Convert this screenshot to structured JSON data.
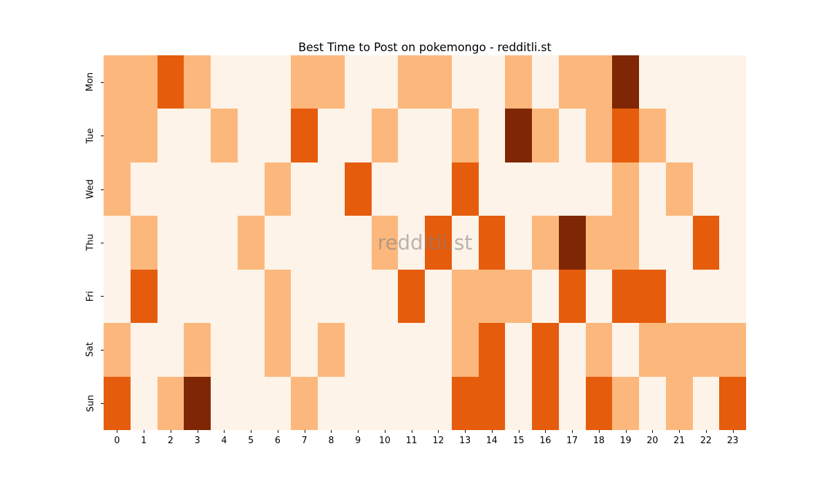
{
  "title": "Best Time to Post on pokemongo - redditli.st",
  "watermark": "redditli.st",
  "chart_data": {
    "type": "heatmap",
    "title": "Best Time to Post on pokemongo - redditli.st",
    "xlabel": "",
    "ylabel": "",
    "x_labels": [
      "0",
      "1",
      "2",
      "3",
      "4",
      "5",
      "6",
      "7",
      "8",
      "9",
      "10",
      "11",
      "12",
      "13",
      "14",
      "15",
      "16",
      "17",
      "18",
      "19",
      "20",
      "21",
      "22",
      "23"
    ],
    "y_labels": [
      "Mon",
      "Tue",
      "Wed",
      "Thu",
      "Fri",
      "Sat",
      "Sun"
    ],
    "colormap": "Oranges",
    "legend": "none",
    "grid": false,
    "level_colors": [
      "#fdf3e8",
      "#fcb87c",
      "#e65c0d",
      "#7f2705"
    ],
    "level_meaning": [
      "low",
      "medium",
      "high",
      "highest"
    ],
    "values": [
      [
        1,
        1,
        2,
        1,
        0,
        0,
        0,
        1,
        1,
        0,
        0,
        1,
        1,
        0,
        0,
        1,
        0,
        1,
        1,
        3,
        0,
        0,
        0,
        0
      ],
      [
        1,
        1,
        0,
        0,
        1,
        0,
        0,
        2,
        0,
        0,
        1,
        0,
        0,
        1,
        0,
        3,
        1,
        0,
        1,
        2,
        1,
        0,
        0,
        0
      ],
      [
        1,
        0,
        0,
        0,
        0,
        0,
        1,
        0,
        0,
        2,
        0,
        0,
        0,
        2,
        0,
        0,
        0,
        0,
        0,
        1,
        0,
        1,
        0,
        0
      ],
      [
        0,
        1,
        0,
        0,
        0,
        1,
        0,
        0,
        0,
        0,
        1,
        0,
        2,
        0,
        2,
        0,
        1,
        3,
        1,
        1,
        0,
        0,
        2,
        0
      ],
      [
        0,
        2,
        0,
        0,
        0,
        0,
        1,
        0,
        0,
        0,
        0,
        2,
        0,
        1,
        1,
        1,
        0,
        2,
        0,
        2,
        2,
        0,
        0,
        0
      ],
      [
        1,
        0,
        0,
        1,
        0,
        0,
        1,
        0,
        1,
        0,
        0,
        0,
        0,
        1,
        2,
        0,
        2,
        0,
        1,
        0,
        1,
        1,
        1,
        1
      ],
      [
        2,
        0,
        1,
        3,
        0,
        0,
        0,
        1,
        0,
        0,
        0,
        0,
        0,
        2,
        2,
        0,
        2,
        0,
        2,
        1,
        0,
        1,
        0,
        2
      ]
    ]
  }
}
